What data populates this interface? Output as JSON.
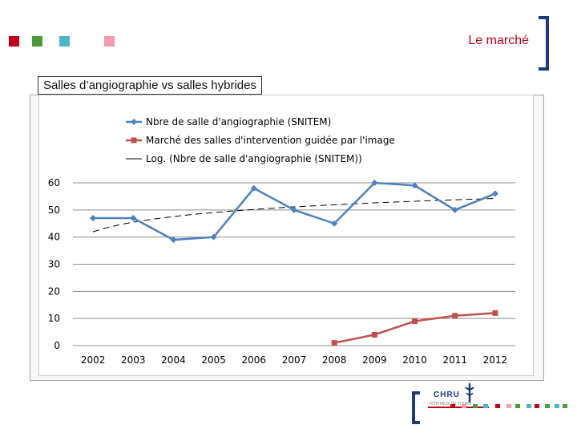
{
  "header": {
    "title": "Le marché"
  },
  "section": {
    "label": "Salles d’angiographie vs salles hybrides"
  },
  "colors": {
    "blue_series": "#4f81bd",
    "red_series": "#c0504d",
    "trend": "#000000",
    "accent_red": "#c0001a",
    "navy": "#1b3a7a",
    "squares": [
      "#c0001a",
      "#4a9a3a",
      "#4bb6c8",
      "#f29ab0"
    ]
  },
  "logo": {
    "name": "CHRU",
    "subtitle": "HÔPITAUX DE TOURS"
  },
  "chart_data": {
    "type": "line",
    "categories": [
      "2002",
      "2003",
      "2004",
      "2005",
      "2006",
      "2007",
      "2008",
      "2009",
      "2010",
      "2011",
      "2012"
    ],
    "ylim": [
      0,
      60
    ],
    "yticks": [
      "0",
      "10",
      "20",
      "30",
      "40",
      "50",
      "60"
    ],
    "grid": true,
    "legend_position": "top",
    "series": [
      {
        "name": "Nbre de salle d'angiographie (SNITEM)",
        "values": [
          47,
          47,
          39,
          40,
          58,
          50,
          45,
          60,
          59,
          50,
          56
        ],
        "color": "#4f81bd",
        "marker": "diamond"
      },
      {
        "name": "Marché des salles d'intervention guidée par l'image",
        "values": [
          null,
          null,
          null,
          null,
          null,
          null,
          1,
          4,
          9,
          11,
          12
        ],
        "color": "#c0504d",
        "marker": "square"
      }
    ],
    "trendline": {
      "name": "Log. (Nbre de salle d'angiographie (SNITEM))",
      "type": "logarithmic",
      "of_series": 0,
      "color": "#000000",
      "dash": true
    }
  }
}
